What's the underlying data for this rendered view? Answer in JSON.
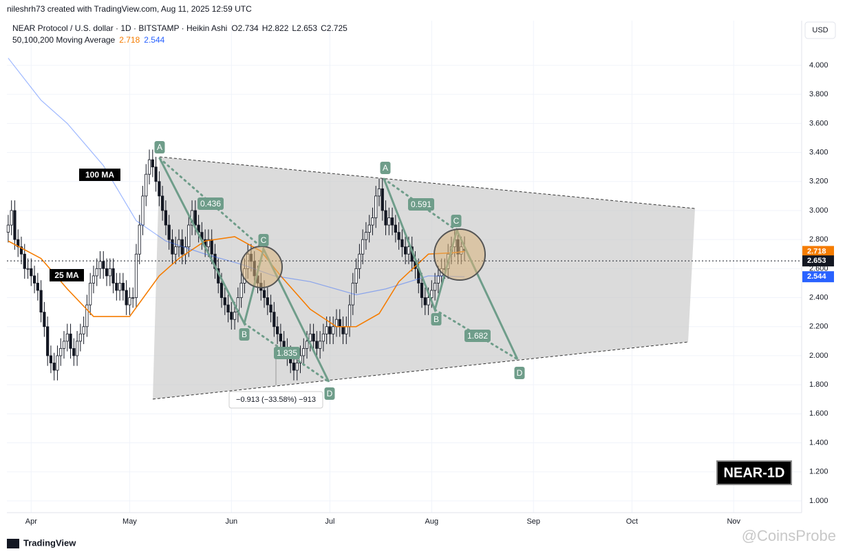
{
  "header": {
    "credit": "nileshrh73 created with TradingView.com, Aug 11, 2025 12:59 UTC",
    "symbol": "NEAR Protocol / U.S. dollar · 1D · BITSTAMP · Heikin Ashi",
    "ohlc": [
      {
        "label": "O",
        "value": 2.734
      },
      {
        "label": "H",
        "value": 2.822
      },
      {
        "label": "L",
        "value": 2.653
      },
      {
        "label": "C",
        "value": 2.725
      }
    ],
    "ma_legend": "50,100,200 Moving Average",
    "currency": "USD"
  },
  "chart_data": {
    "type": "candlestick",
    "xlim": [
      -0.4,
      241.7
    ],
    "xticks": [
      {
        "value": 7,
        "label": "Apr"
      },
      {
        "value": 37,
        "label": "May"
      },
      {
        "value": 68,
        "label": "Jun"
      },
      {
        "value": 98,
        "label": "Jul"
      },
      {
        "value": 129,
        "label": "Aug"
      },
      {
        "value": 160,
        "label": "Sep"
      },
      {
        "value": 190,
        "label": "Oct"
      },
      {
        "value": 221,
        "label": "Nov"
      }
    ],
    "ylim": [
      0.919,
      4.308
    ],
    "yticks": [
      {
        "value": 1,
        "label": "1.000"
      },
      {
        "value": 1.2,
        "label": "1.200"
      },
      {
        "value": 1.4,
        "label": "1.400"
      },
      {
        "value": 1.6,
        "label": "1.600"
      },
      {
        "value": 1.8,
        "label": "1.800"
      },
      {
        "value": 2,
        "label": "2.000"
      },
      {
        "value": 2.2,
        "label": "2.200"
      },
      {
        "value": 2.4,
        "label": "2.400"
      },
      {
        "value": 2.6,
        "label": "2.600"
      },
      {
        "value": 2.8,
        "label": "2.800"
      },
      {
        "value": 3,
        "label": "3.000"
      },
      {
        "value": 3.2,
        "label": "3.200"
      },
      {
        "value": 3.4,
        "label": "3.400"
      },
      {
        "value": 3.6,
        "label": "3.600"
      },
      {
        "value": 3.8,
        "label": "3.800"
      },
      {
        "value": 4,
        "label": "4.000"
      }
    ],
    "grid": true,
    "up_color": "#ffffff",
    "down_color": "#131722",
    "candles": [
      [
        2.85,
        2.97,
        2.78,
        2.9
      ],
      [
        2.9,
        3.07,
        2.83,
        3.0
      ],
      [
        3.0,
        3.07,
        2.73,
        2.8
      ],
      [
        2.8,
        2.87,
        2.68,
        2.75
      ],
      [
        2.75,
        2.82,
        2.63,
        2.7
      ],
      [
        2.7,
        2.77,
        2.53,
        2.6
      ],
      [
        2.6,
        2.67,
        2.53,
        2.6
      ],
      [
        2.6,
        2.67,
        2.48,
        2.55
      ],
      [
        2.55,
        2.62,
        2.43,
        2.5
      ],
      [
        2.5,
        2.57,
        2.38,
        2.45
      ],
      [
        2.45,
        2.52,
        2.23,
        2.3
      ],
      [
        2.3,
        2.37,
        2.13,
        2.2
      ],
      [
        2.2,
        2.27,
        1.93,
        2.0
      ],
      [
        2.0,
        2.07,
        1.88,
        1.95
      ],
      [
        1.95,
        2.02,
        1.83,
        1.9
      ],
      [
        1.9,
        2.07,
        1.83,
        2.0
      ],
      [
        2.0,
        2.12,
        1.93,
        2.05
      ],
      [
        2.05,
        2.17,
        1.98,
        2.1
      ],
      [
        2.1,
        2.22,
        2.03,
        2.15
      ],
      [
        2.15,
        2.22,
        1.98,
        2.05
      ],
      [
        2.05,
        2.12,
        1.93,
        2.0
      ],
      [
        2.0,
        2.17,
        1.93,
        2.1
      ],
      [
        2.1,
        2.22,
        2.03,
        2.15
      ],
      [
        2.15,
        2.27,
        2.08,
        2.2
      ],
      [
        2.2,
        2.42,
        2.13,
        2.35
      ],
      [
        2.35,
        2.57,
        2.28,
        2.5
      ],
      [
        2.5,
        2.62,
        2.43,
        2.55
      ],
      [
        2.55,
        2.67,
        2.48,
        2.6
      ],
      [
        2.6,
        2.72,
        2.53,
        2.65
      ],
      [
        2.65,
        2.72,
        2.53,
        2.6
      ],
      [
        2.6,
        2.67,
        2.48,
        2.55
      ],
      [
        2.55,
        2.67,
        2.48,
        2.6
      ],
      [
        2.6,
        2.67,
        2.43,
        2.5
      ],
      [
        2.5,
        2.57,
        2.38,
        2.45
      ],
      [
        2.45,
        2.57,
        2.38,
        2.5
      ],
      [
        2.5,
        2.57,
        2.38,
        2.45
      ],
      [
        2.45,
        2.52,
        2.28,
        2.35
      ],
      [
        2.35,
        2.47,
        2.28,
        2.4
      ],
      [
        2.4,
        2.47,
        2.33,
        2.4
      ],
      [
        2.4,
        2.77,
        2.33,
        2.7
      ],
      [
        2.7,
        2.97,
        2.63,
        2.9
      ],
      [
        2.9,
        3.17,
        2.83,
        3.1
      ],
      [
        3.1,
        3.32,
        3.03,
        3.25
      ],
      [
        3.25,
        3.42,
        3.18,
        3.35
      ],
      [
        3.35,
        3.42,
        3.23,
        3.3
      ],
      [
        3.3,
        3.37,
        3.13,
        3.2
      ],
      [
        3.2,
        3.27,
        3.03,
        3.1
      ],
      [
        3.1,
        3.17,
        2.93,
        3.0
      ],
      [
        3.0,
        3.07,
        2.83,
        2.9
      ],
      [
        2.9,
        2.97,
        2.73,
        2.8
      ],
      [
        2.8,
        2.87,
        2.63,
        2.7
      ],
      [
        2.7,
        2.82,
        2.63,
        2.75
      ],
      [
        2.75,
        2.87,
        2.68,
        2.8
      ],
      [
        2.8,
        2.87,
        2.63,
        2.7
      ],
      [
        2.7,
        2.82,
        2.63,
        2.75
      ],
      [
        2.75,
        2.97,
        2.68,
        2.9
      ],
      [
        2.9,
        3.07,
        2.83,
        3.0
      ],
      [
        3.0,
        3.07,
        2.83,
        2.9
      ],
      [
        2.9,
        2.97,
        2.78,
        2.85
      ],
      [
        2.85,
        2.92,
        2.73,
        2.8
      ],
      [
        2.8,
        2.87,
        2.68,
        2.75
      ],
      [
        2.75,
        2.87,
        2.68,
        2.8
      ],
      [
        2.8,
        2.87,
        2.63,
        2.7
      ],
      [
        2.7,
        2.77,
        2.53,
        2.6
      ],
      [
        2.6,
        2.67,
        2.43,
        2.5
      ],
      [
        2.5,
        2.57,
        2.33,
        2.4
      ],
      [
        2.4,
        2.47,
        2.28,
        2.35
      ],
      [
        2.35,
        2.42,
        2.23,
        2.3
      ],
      [
        2.3,
        2.37,
        2.18,
        2.25
      ],
      [
        2.25,
        2.37,
        2.18,
        2.3
      ],
      [
        2.3,
        2.47,
        2.23,
        2.4
      ],
      [
        2.4,
        2.57,
        2.33,
        2.5
      ],
      [
        2.5,
        2.67,
        2.43,
        2.6
      ],
      [
        2.6,
        2.77,
        2.53,
        2.7
      ],
      [
        2.7,
        2.77,
        2.58,
        2.65
      ],
      [
        2.65,
        2.72,
        2.48,
        2.55
      ],
      [
        2.55,
        2.62,
        2.43,
        2.5
      ],
      [
        2.5,
        2.57,
        2.38,
        2.45
      ],
      [
        2.45,
        2.52,
        2.33,
        2.4
      ],
      [
        2.4,
        2.47,
        2.28,
        2.35
      ],
      [
        2.35,
        2.42,
        2.23,
        2.3
      ],
      [
        2.3,
        2.37,
        2.13,
        2.2
      ],
      [
        2.2,
        2.27,
        2.08,
        2.15
      ],
      [
        2.15,
        2.22,
        2.03,
        2.1
      ],
      [
        2.1,
        2.17,
        1.98,
        2.05
      ],
      [
        2.05,
        2.12,
        1.93,
        2.0
      ],
      [
        2.0,
        2.07,
        1.88,
        1.95
      ],
      [
        1.95,
        2.02,
        1.83,
        1.9
      ],
      [
        1.9,
        2.02,
        1.83,
        1.95
      ],
      [
        1.95,
        2.07,
        1.88,
        2.0
      ],
      [
        2.0,
        2.12,
        1.93,
        2.05
      ],
      [
        2.05,
        2.17,
        1.98,
        2.1
      ],
      [
        2.1,
        2.22,
        2.03,
        2.15
      ],
      [
        2.15,
        2.22,
        2.03,
        2.1
      ],
      [
        2.1,
        2.17,
        1.98,
        2.05
      ],
      [
        2.05,
        2.17,
        1.98,
        2.1
      ],
      [
        2.1,
        2.22,
        2.03,
        2.15
      ],
      [
        2.15,
        2.27,
        2.08,
        2.2
      ],
      [
        2.2,
        2.27,
        2.08,
        2.15
      ],
      [
        2.15,
        2.27,
        2.08,
        2.2
      ],
      [
        2.2,
        2.32,
        2.13,
        2.25
      ],
      [
        2.25,
        2.32,
        2.13,
        2.2
      ],
      [
        2.2,
        2.27,
        2.08,
        2.15
      ],
      [
        2.15,
        2.27,
        2.08,
        2.2
      ],
      [
        2.2,
        2.42,
        2.13,
        2.35
      ],
      [
        2.35,
        2.57,
        2.28,
        2.5
      ],
      [
        2.5,
        2.67,
        2.43,
        2.6
      ],
      [
        2.6,
        2.77,
        2.53,
        2.7
      ],
      [
        2.7,
        2.87,
        2.63,
        2.8
      ],
      [
        2.8,
        2.92,
        2.73,
        2.85
      ],
      [
        2.85,
        2.97,
        2.78,
        2.9
      ],
      [
        2.9,
        3.02,
        2.83,
        2.95
      ],
      [
        2.95,
        3.17,
        2.88,
        3.1
      ],
      [
        3.1,
        3.22,
        3.03,
        3.15
      ],
      [
        3.15,
        3.22,
        2.93,
        3.0
      ],
      [
        3.0,
        3.07,
        2.83,
        2.9
      ],
      [
        2.9,
        3.02,
        2.83,
        2.95
      ],
      [
        2.95,
        3.02,
        2.83,
        2.9
      ],
      [
        2.9,
        2.97,
        2.78,
        2.85
      ],
      [
        2.85,
        2.92,
        2.73,
        2.8
      ],
      [
        2.8,
        2.87,
        2.68,
        2.75
      ],
      [
        2.75,
        2.82,
        2.63,
        2.7
      ],
      [
        2.7,
        2.82,
        2.63,
        2.75
      ],
      [
        2.75,
        2.82,
        2.58,
        2.65
      ],
      [
        2.65,
        2.72,
        2.53,
        2.6
      ],
      [
        2.6,
        2.67,
        2.43,
        2.5
      ],
      [
        2.5,
        2.57,
        2.33,
        2.4
      ],
      [
        2.4,
        2.47,
        2.28,
        2.35
      ],
      [
        2.35,
        2.47,
        2.28,
        2.4
      ],
      [
        2.4,
        2.52,
        2.33,
        2.45
      ],
      [
        2.45,
        2.57,
        2.38,
        2.5
      ],
      [
        2.5,
        2.62,
        2.43,
        2.55
      ],
      [
        2.55,
        2.67,
        2.48,
        2.6
      ],
      [
        2.6,
        2.67,
        2.53,
        2.6
      ],
      [
        2.6,
        2.77,
        2.53,
        2.7
      ],
      [
        2.7,
        2.82,
        2.63,
        2.75
      ],
      [
        2.75,
        2.87,
        2.68,
        2.8
      ],
      [
        2.8,
        2.87,
        2.63,
        2.7
      ],
      [
        2.7,
        2.82,
        2.63,
        2.75
      ],
      [
        2.734,
        2.822,
        2.653,
        2.725
      ]
    ],
    "series": [
      {
        "color": "#f57c00",
        "price_label": 2.718,
        "x": [
          0,
          10,
          18,
          26,
          37,
          46,
          52,
          60,
          69,
          77,
          83,
          92,
          100,
          106,
          113,
          119,
          128,
          136,
          139
        ],
        "values": [
          2.79,
          2.67,
          2.46,
          2.27,
          2.27,
          2.55,
          2.67,
          2.79,
          2.82,
          2.72,
          2.55,
          2.32,
          2.2,
          2.2,
          2.29,
          2.51,
          2.7,
          2.71,
          2.718
        ]
      },
      {
        "color": "#2962ff",
        "price_label": 2.544,
        "x": [
          0,
          10,
          18,
          29,
          39,
          48,
          60,
          71,
          81,
          92,
          106,
          115,
          128,
          139
        ],
        "values": [
          4.05,
          3.76,
          3.6,
          3.31,
          2.93,
          2.79,
          2.7,
          2.63,
          2.55,
          2.51,
          2.42,
          2.46,
          2.55,
          2.544
        ]
      }
    ],
    "last_price": 2.653,
    "annotations": [
      "A",
      "B",
      "C",
      "D",
      "0.436",
      "1.835",
      "A",
      "B",
      "C",
      "D",
      "0.591",
      "1.682"
    ],
    "ma_tags": [
      "100 MA",
      "25 MA"
    ],
    "measure": "−0.913 (−33.58%) −913",
    "badge": "NEAR-1D"
  },
  "footer": {
    "brand": "TradingView",
    "watermark": "@CoinsProbe"
  }
}
